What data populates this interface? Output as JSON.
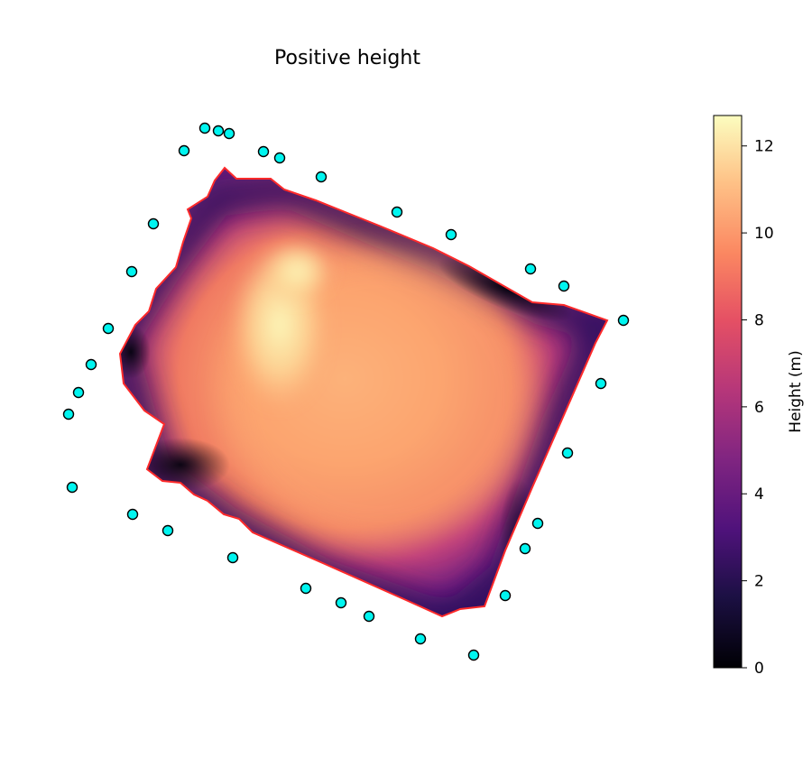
{
  "title": "Positive height",
  "chart_data": {
    "type": "heatmap",
    "title": "Positive height",
    "colormap": "magma",
    "colorbar": {
      "label": "Height (m)",
      "range": [
        0,
        12.7
      ],
      "ticks": [
        "0",
        "2",
        "4",
        "6",
        "8",
        "10",
        "12"
      ]
    },
    "boundary_color": "#ff2a2a",
    "marker_color": "#00f5f0",
    "marker_count": 34,
    "axes_visible": false
  }
}
